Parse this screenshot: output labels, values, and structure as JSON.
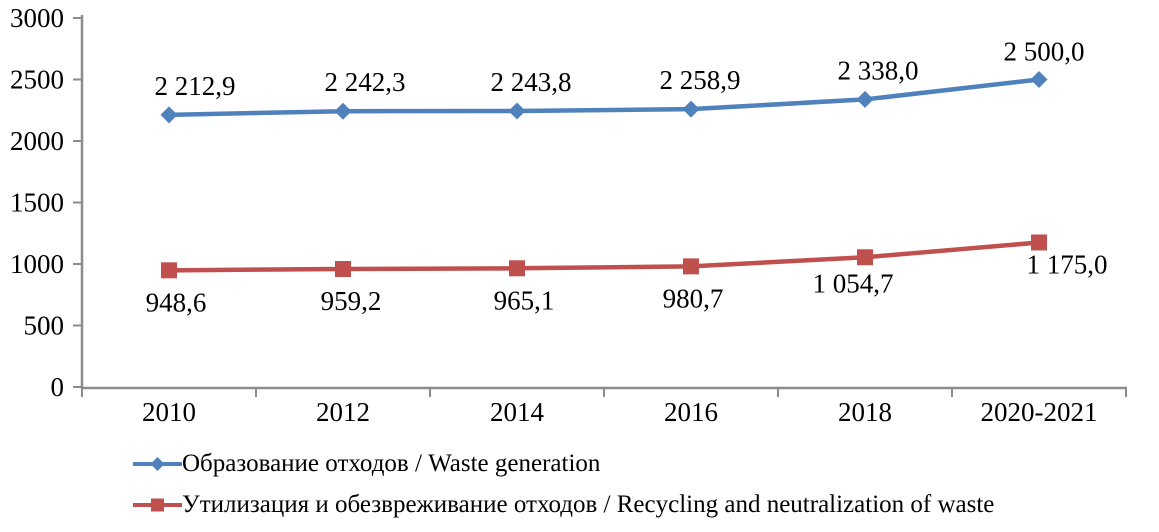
{
  "chart_data": {
    "type": "line",
    "categories": [
      "2010",
      "2012",
      "2014",
      "2016",
      "2018",
      "2020-2021"
    ],
    "series": [
      {
        "name": "Образование отходов / Waste generation",
        "values": [
          2212.9,
          2242.3,
          2243.8,
          2258.9,
          2338.0,
          2500.0
        ],
        "labels": [
          "2 212,9",
          "2 242,3",
          "2 243,8",
          "2 258,9",
          "2 338,0",
          "2 500,0"
        ],
        "color": "#4F81BD",
        "marker": "diamond",
        "label_position": "above"
      },
      {
        "name": "Утилизация и обезвреживание отходов / Recycling and neutralization of waste",
        "values": [
          948.6,
          959.2,
          965.1,
          980.7,
          1054.7,
          1175.0
        ],
        "labels": [
          "948,6",
          "959,2",
          "965,1",
          "980,7",
          "1 054,7",
          "1 175,0"
        ],
        "color": "#C0504D",
        "marker": "square",
        "label_position": "below"
      }
    ],
    "y_axis": {
      "min": 0,
      "max": 3000,
      "step": 500,
      "tick_labels": [
        "0",
        "500",
        "1000",
        "1500",
        "2000",
        "2500",
        "3000"
      ]
    },
    "grid": false,
    "legend_position": "bottom-left",
    "axis_color": "#8C8C8C",
    "text_color": "#000000"
  }
}
